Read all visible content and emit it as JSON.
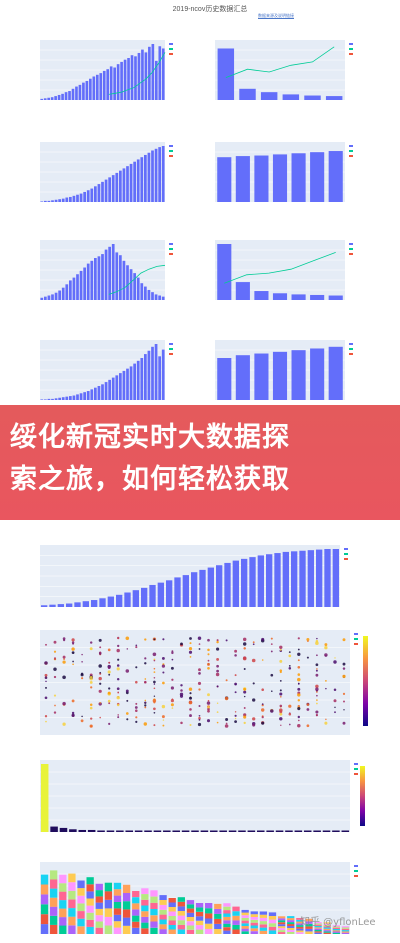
{
  "page": {
    "title": "2019-ncov历史数据汇总",
    "link": "数据来源及说明链接"
  },
  "banner": {
    "text": "绥化新冠实时大数据探\n索之旅，如何轻松获取"
  },
  "watermark": "知乎 @yflonLee",
  "colors": {
    "bar": "#636efa",
    "line1": "#00cc96",
    "line2": "#ef553b",
    "grid": "#e5ecf6"
  },
  "chart_data": [
    {
      "type": "bar",
      "id": "national-daily",
      "series": [
        {
          "values": [
            2,
            3,
            4,
            5,
            7,
            9,
            11,
            14,
            16,
            20,
            24,
            27,
            31,
            34,
            38,
            42,
            45,
            48,
            52,
            55,
            60,
            58,
            64,
            68,
            72,
            75,
            80,
            78,
            84,
            90,
            85,
            95,
            100,
            70,
            96,
            92
          ]
        }
      ],
      "line": [
        10,
        12,
        14,
        18,
        22,
        30,
        38,
        50,
        66,
        85
      ]
    },
    {
      "type": "bar",
      "id": "national-summary",
      "series": [
        {
          "values": [
            92,
            20,
            14,
            10,
            8,
            7
          ]
        }
      ],
      "line": [
        40,
        55,
        50,
        62,
        68,
        95
      ]
    },
    {
      "type": "bar",
      "id": "hubei-daily",
      "series": [
        {
          "values": [
            1,
            2,
            2,
            3,
            4,
            5,
            6,
            8,
            9,
            11,
            13,
            15,
            18,
            21,
            24,
            28,
            32,
            36,
            40,
            44,
            48,
            52,
            56,
            60,
            64,
            68,
            72,
            76,
            80,
            84,
            88,
            92,
            95,
            98,
            100
          ]
        }
      ],
      "line": []
    },
    {
      "type": "bar",
      "id": "hubei-summary",
      "series": [
        {
          "values": [
            80,
            82,
            83,
            85,
            87,
            89,
            91
          ]
        }
      ],
      "line": []
    },
    {
      "type": "bar",
      "id": "other-daily",
      "series": [
        {
          "values": [
            4,
            6,
            8,
            10,
            13,
            17,
            22,
            28,
            35,
            40,
            46,
            52,
            58,
            65,
            70,
            75,
            78,
            82,
            90,
            95,
            100,
            85,
            80,
            70,
            62,
            55,
            48,
            40,
            30,
            24,
            18,
            14,
            10,
            8,
            6
          ]
        }
      ],
      "line": [
        10,
        15,
        22,
        35,
        48,
        55,
        60,
        62
      ]
    },
    {
      "type": "bar",
      "id": "other-summary",
      "series": [
        {
          "values": [
            100,
            32,
            16,
            12,
            10,
            9,
            8
          ]
        }
      ],
      "line": [
        30,
        45,
        48,
        55,
        70,
        85
      ]
    },
    {
      "type": "bar",
      "id": "cured-daily",
      "series": [
        {
          "values": [
            1,
            1,
            2,
            2,
            3,
            4,
            5,
            6,
            7,
            8,
            10,
            12,
            14,
            16,
            19,
            22,
            25,
            28,
            32,
            36,
            40,
            44,
            48,
            52,
            56,
            60,
            65,
            70,
            75,
            82,
            88,
            95,
            100,
            78,
            90
          ]
        }
      ],
      "line": []
    },
    {
      "type": "bar",
      "id": "cured-summary",
      "series": [
        {
          "values": [
            75,
            80,
            83,
            86,
            89,
            92,
            95
          ]
        }
      ],
      "line": []
    },
    {
      "type": "bar",
      "id": "cumulative-growth",
      "series": [
        {
          "values": [
            3,
            4,
            5,
            6,
            8,
            10,
            12,
            15,
            18,
            21,
            25,
            29,
            33,
            38,
            42,
            46,
            51,
            55,
            60,
            64,
            68,
            72,
            76,
            80,
            83,
            86,
            89,
            91,
            93,
            95,
            96,
            97,
            98,
            99,
            100,
            100
          ]
        }
      ],
      "line": []
    },
    {
      "type": "scatter",
      "id": "province-dots"
    },
    {
      "type": "bar",
      "id": "province-bars",
      "series": [
        {
          "values": [
            100,
            8,
            6,
            4,
            3,
            3,
            2,
            2,
            2,
            2,
            1,
            1,
            1,
            1,
            1,
            1,
            1,
            1,
            1,
            1,
            1,
            1,
            1,
            1,
            1,
            1,
            1,
            1,
            1,
            1,
            1,
            1,
            1
          ]
        }
      ]
    },
    {
      "type": "bar",
      "id": "stacked-bars",
      "stacked": true
    }
  ]
}
